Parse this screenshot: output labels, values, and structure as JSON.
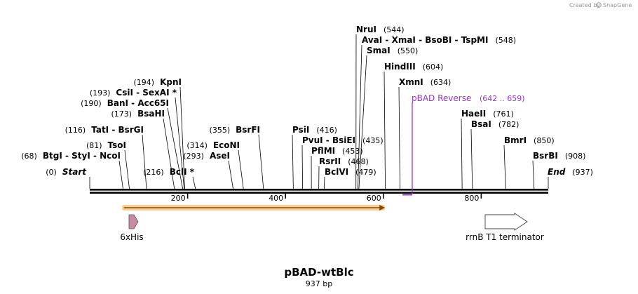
{
  "header": {
    "credit_text": "Created by",
    "brand": "SnapGene"
  },
  "title": {
    "name": "pBAD-wtBlc",
    "length": "937 bp"
  },
  "ruler": {
    "total_bp": 937,
    "ticks": [
      200,
      400,
      600,
      800
    ]
  },
  "sites": [
    {
      "id": "start",
      "label": "Start",
      "pos": "(0)",
      "bp": 0,
      "italic": true,
      "pos_side": "left"
    },
    {
      "id": "btgi",
      "label": "BtgI  - StyI  - NcoI",
      "pos": "(68)",
      "bp": 68,
      "pos_side": "left"
    },
    {
      "id": "tsoi",
      "label": "TsoI",
      "pos": "(81)",
      "bp": 81,
      "pos_side": "left"
    },
    {
      "id": "tati",
      "label": "TatI  - BsrGI",
      "pos": "(116)",
      "bp": 116,
      "pos_side": "left"
    },
    {
      "id": "bsahi",
      "label": "BsaHI",
      "pos": "(173)",
      "bp": 173,
      "pos_side": "left"
    },
    {
      "id": "bani",
      "label": "BanI  - Acc65I",
      "pos": "(190)",
      "bp": 190,
      "pos_side": "left"
    },
    {
      "id": "csii",
      "label": "CsiI  - SexAI *",
      "pos": "(193)",
      "bp": 193,
      "pos_side": "left"
    },
    {
      "id": "kpni",
      "label": "KpnI",
      "pos": "(194)",
      "bp": 194,
      "pos_side": "left"
    },
    {
      "id": "bcli",
      "label": "BclI *",
      "pos": "(216)",
      "bp": 216,
      "pos_side": "left"
    },
    {
      "id": "asei",
      "label": "AseI",
      "pos": "(293)",
      "bp": 293,
      "pos_side": "left"
    },
    {
      "id": "econi",
      "label": "EcoNI",
      "pos": "(314)",
      "bp": 314,
      "pos_side": "left"
    },
    {
      "id": "bsrfi",
      "label": "BsrFI",
      "pos": "(355)",
      "bp": 355,
      "pos_side": "left"
    },
    {
      "id": "psii",
      "label": "PsiI",
      "pos": "(416)",
      "bp": 416,
      "pos_side": "right"
    },
    {
      "id": "pvui",
      "label": "PvuI  - BsiEI",
      "pos": "(435)",
      "bp": 435,
      "pos_side": "right"
    },
    {
      "id": "pflmi",
      "label": "PflMI",
      "pos": "(453)",
      "bp": 453,
      "pos_side": "right"
    },
    {
      "id": "rsrii",
      "label": "RsrII",
      "pos": "(468)",
      "bp": 468,
      "pos_side": "right"
    },
    {
      "id": "bclvi",
      "label": "BclVI",
      "pos": "(479)",
      "bp": 479,
      "pos_side": "right"
    },
    {
      "id": "nrui",
      "label": "NruI",
      "pos": "(544)",
      "bp": 544,
      "pos_side": "right"
    },
    {
      "id": "avai",
      "label": "AvaI  - XmaI  - BsoBI  - TspMI",
      "pos": "(548)",
      "bp": 548,
      "pos_side": "right"
    },
    {
      "id": "smai",
      "label": "SmaI",
      "pos": "(550)",
      "bp": 550,
      "pos_side": "right"
    },
    {
      "id": "hindiii",
      "label": "HindIII",
      "pos": "(604)",
      "bp": 604,
      "pos_side": "right"
    },
    {
      "id": "xmni",
      "label": "XmnI",
      "pos": "(634)",
      "bp": 634,
      "pos_side": "right"
    },
    {
      "id": "haeii",
      "label": "HaeII",
      "pos": "(761)",
      "bp": 761,
      "pos_side": "right"
    },
    {
      "id": "bsai",
      "label": "BsaI",
      "pos": "(782)",
      "bp": 782,
      "pos_side": "right"
    },
    {
      "id": "bmri",
      "label": "BmrI",
      "pos": "(850)",
      "bp": 850,
      "pos_side": "right"
    },
    {
      "id": "bsrbi",
      "label": "BsrBI",
      "pos": "(908)",
      "bp": 908,
      "pos_side": "right"
    },
    {
      "id": "end",
      "label": "End",
      "pos": "(937)",
      "bp": 937,
      "italic": true,
      "pos_side": "right"
    }
  ],
  "primer": {
    "label": "pBAD Reverse",
    "range": "(642 .. 659)",
    "start_bp": 642,
    "end_bp": 659,
    "color": "#9b30d9"
  },
  "cds": {
    "start_bp": 70,
    "end_bp": 602,
    "color": "#f0b46a",
    "line_color": "#8a4a00"
  },
  "features": [
    {
      "id": "sixhis",
      "label": "6xHis",
      "start_bp": 80,
      "end_bp": 97,
      "fill": "#c98aa4"
    },
    {
      "id": "rrnb",
      "label": "rrnB T1 terminator",
      "start_bp": 811,
      "end_bp": 898,
      "fill": "#ffffff"
    }
  ]
}
